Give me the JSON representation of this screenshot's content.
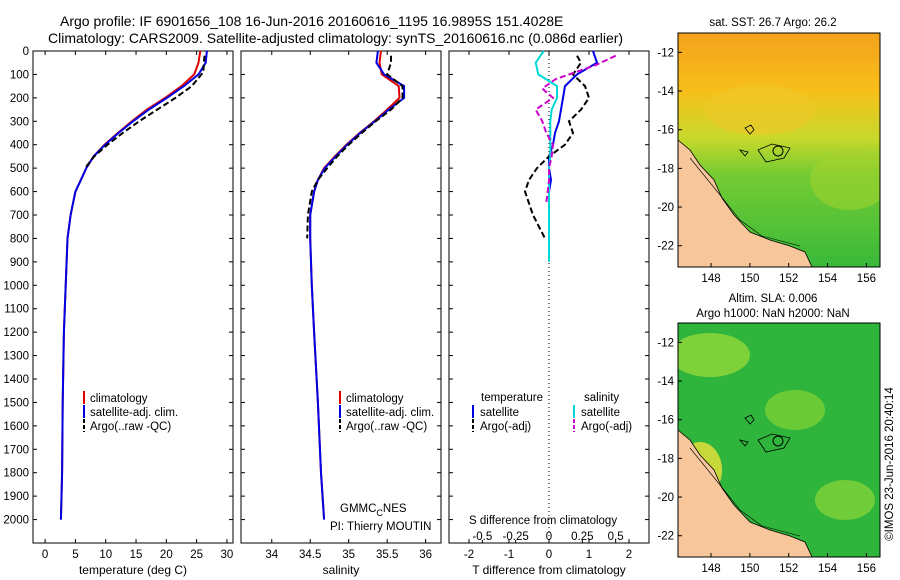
{
  "header": {
    "title_line1": "Argo profile: IF 6901656_108 16-Jun-2016 20160616_1195 16.9895S 151.4028E",
    "title_line2": "Climatology: CARS2009. Satellite-adjusted climatology: synTS_20160616.nc (0.086d earlier)"
  },
  "colors": {
    "climatology": "#e00000",
    "satellite": "#0000e6",
    "argo": "#000000",
    "sal_satellite": "#00d8d8",
    "sal_argo": "#cc00cc"
  },
  "legend": {
    "climatology": "climatology",
    "satellite_adj": "satellite-adj. clim.",
    "argo": "Argo(..raw -QC)"
  },
  "credits": {
    "gmmc": "GMMC",
    "gmmc_sub": "C",
    "gmmc_tail": "NES",
    "pi": "PI: Thierry MOUTIN"
  },
  "diff_legend": {
    "temperature": "temperature",
    "salinity": "salinity",
    "t_satellite": "satellite",
    "t_argo": "Argo(-adj)",
    "s_satellite": "satellite",
    "s_argo": "Argo(-adj)"
  },
  "maps": {
    "sst_title": "sat. SST: 26.7 Argo: 26.2",
    "sla_title1": "Altim. SLA: 0.006",
    "sla_title2": "Argo h1000: NaN h2000: NaN",
    "x_ticks": [
      "148",
      "150",
      "152",
      "154",
      "156"
    ],
    "y_ticks": [
      "-12",
      "-14",
      "-16",
      "-18",
      "-20",
      "-22"
    ],
    "x_range": [
      146.3,
      156.7
    ],
    "y_range": [
      -23.1,
      -11.0
    ],
    "argo_position": [
      151.4,
      -16.99
    ]
  },
  "footer": {
    "timestamp": "©IMOS 23-Jun-2016 20:40:14"
  },
  "chart_data": [
    {
      "type": "line",
      "name": "temperature profile",
      "xlabel": "temperature (deg C)",
      "ylabel": "",
      "xlim": [
        -2,
        31
      ],
      "ylim": [
        2100,
        0
      ],
      "x_ticks": [
        "0",
        "5",
        "10",
        "15",
        "20",
        "25",
        "30"
      ],
      "y_ticks": [
        "0",
        "100",
        "200",
        "300",
        "400",
        "500",
        "600",
        "700",
        "800",
        "900",
        "1000",
        "1100",
        "1200",
        "1300",
        "1400",
        "1500",
        "1600",
        "1700",
        "1800",
        "1900",
        "2000"
      ],
      "series": [
        {
          "name": "climatology",
          "color_key": "climatology",
          "x": [
            25.6,
            25.3,
            24.6,
            22.5,
            19.8,
            16.8,
            14.3,
            12.0,
            9.8,
            8.0,
            6.8,
            5.9,
            5.0,
            4.2,
            3.7,
            3.4,
            3.1,
            2.9,
            2.8,
            2.6
          ],
          "y": [
            0,
            50,
            100,
            150,
            200,
            250,
            300,
            350,
            400,
            450,
            500,
            550,
            600,
            700,
            800,
            1000,
            1200,
            1500,
            1800,
            2000
          ]
        },
        {
          "name": "satellite-adj. clim.",
          "color_key": "satellite",
          "x": [
            26.7,
            26.5,
            25.3,
            22.9,
            20.1,
            17.1,
            14.5,
            12.1,
            9.9,
            8.0,
            6.8,
            5.9,
            5.0,
            4.2,
            3.7,
            3.4,
            3.1,
            2.9,
            2.8,
            2.6
          ],
          "y": [
            0,
            50,
            100,
            150,
            200,
            250,
            300,
            350,
            400,
            450,
            500,
            550,
            600,
            700,
            800,
            1000,
            1200,
            1500,
            1800,
            2000
          ]
        },
        {
          "name": "Argo(..raw -QC)",
          "color_key": "argo",
          "dashed": true,
          "x": [
            26.3,
            26.2,
            26.1,
            24.2,
            21.5,
            18.5,
            15.5,
            12.8,
            10.3,
            8.1,
            6.6
          ],
          "y": [
            20,
            50,
            90,
            150,
            200,
            250,
            300,
            350,
            400,
            450,
            500
          ]
        }
      ],
      "legend": [
        "climatology",
        "satellite-adj. clim.",
        "Argo(..raw -QC)"
      ]
    },
    {
      "type": "line",
      "name": "salinity profile",
      "xlabel": "salinity",
      "xlim": [
        33.6,
        36.2
      ],
      "ylim": [
        2100,
        0
      ],
      "x_ticks": [
        "34",
        "34.5",
        "35",
        "35.5",
        "36"
      ],
      "series": [
        {
          "name": "climatology",
          "color_key": "climatology",
          "x": [
            35.42,
            35.4,
            35.43,
            35.65,
            35.66,
            35.5,
            35.33,
            35.14,
            34.97,
            34.82,
            34.68,
            34.6,
            34.55,
            34.5,
            34.5,
            34.52,
            34.55,
            34.6,
            34.64,
            34.68
          ],
          "y": [
            0,
            50,
            100,
            150,
            200,
            250,
            300,
            350,
            400,
            450,
            500,
            550,
            600,
            700,
            800,
            1000,
            1200,
            1500,
            1800,
            2000
          ]
        },
        {
          "name": "satellite-adj. clim.",
          "color_key": "satellite",
          "x": [
            35.38,
            35.36,
            35.46,
            35.72,
            35.72,
            35.52,
            35.34,
            35.15,
            34.98,
            34.83,
            34.69,
            34.6,
            34.55,
            34.5,
            34.5,
            34.52,
            34.55,
            34.6,
            34.64,
            34.68
          ],
          "y": [
            0,
            50,
            100,
            150,
            200,
            250,
            300,
            350,
            400,
            450,
            500,
            550,
            600,
            700,
            800,
            1000,
            1200,
            1500,
            1800,
            2000
          ]
        },
        {
          "name": "Argo(..raw -QC)",
          "color_key": "argo",
          "dashed": true,
          "x": [
            35.55,
            35.55,
            35.5,
            35.7,
            35.7,
            35.55,
            35.35,
            35.17,
            35.0,
            34.85,
            34.72,
            34.6,
            34.52,
            34.47,
            34.46
          ],
          "y": [
            20,
            50,
            100,
            150,
            200,
            250,
            300,
            350,
            400,
            450,
            500,
            550,
            600,
            700,
            800
          ]
        }
      ],
      "legend": [
        "climatology",
        "satellite-adj. clim.",
        "Argo(..raw -QC)"
      ]
    },
    {
      "type": "line",
      "name": "difference from climatology",
      "xlabel": "T difference from climatology",
      "xlabel_top": "S difference from climatology",
      "xlim": [
        -2.5,
        2.5
      ],
      "ylim": [
        2100,
        0
      ],
      "x_ticks": [
        "-2",
        "-1",
        "0",
        "1",
        "2"
      ],
      "s_ticks": [
        "-0.5",
        "-0.25",
        "0",
        "0.25",
        "0.5"
      ],
      "series": [
        {
          "name": "temperature satellite",
          "color_key": "satellite",
          "x": [
            1.1,
            1.2,
            0.7,
            0.4,
            0.35,
            0.3,
            0.25,
            0.15,
            0.1,
            0.0,
            0.0,
            0.05,
            0.0,
            0.0,
            0.0
          ],
          "y": [
            0,
            50,
            100,
            150,
            200,
            250,
            300,
            350,
            400,
            450,
            500,
            550,
            600,
            700,
            800
          ]
        },
        {
          "name": "temperature Argo(-adj)",
          "color_key": "argo",
          "dashed": true,
          "x": [
            0.7,
            0.8,
            0.6,
            0.9,
            1.0,
            0.8,
            0.5,
            0.6,
            0.4,
            0.0,
            -0.3,
            -0.5,
            -0.6,
            -0.4,
            -0.1
          ],
          "y": [
            20,
            50,
            100,
            150,
            200,
            250,
            300,
            350,
            400,
            450,
            500,
            550,
            600,
            700,
            800
          ]
        },
        {
          "name": "salinity satellite",
          "color_key": "sal_satellite",
          "x": [
            -0.04,
            -0.1,
            -0.08,
            0.06,
            0.06,
            0.02,
            0.01,
            0.01,
            0.01,
            0.01,
            0.0,
            0.0,
            0.0,
            0.0,
            0.0,
            0.0
          ],
          "y": [
            0,
            50,
            100,
            150,
            200,
            250,
            300,
            350,
            400,
            450,
            500,
            550,
            600,
            700,
            800,
            900
          ]
        },
        {
          "name": "salinity Argo(-adj)",
          "color_key": "sal_argo",
          "dashed": true,
          "x": [
            0.5,
            0.35,
            0.05,
            -0.05,
            0.03,
            -0.1,
            -0.05,
            -0.02,
            0.03,
            0.02,
            0.0,
            0.0,
            -0.01,
            -0.02
          ],
          "y": [
            20,
            60,
            120,
            160,
            200,
            250,
            300,
            350,
            400,
            450,
            500,
            550,
            600,
            650
          ]
        }
      ],
      "legend": [
        "temperature",
        "salinity"
      ]
    }
  ]
}
